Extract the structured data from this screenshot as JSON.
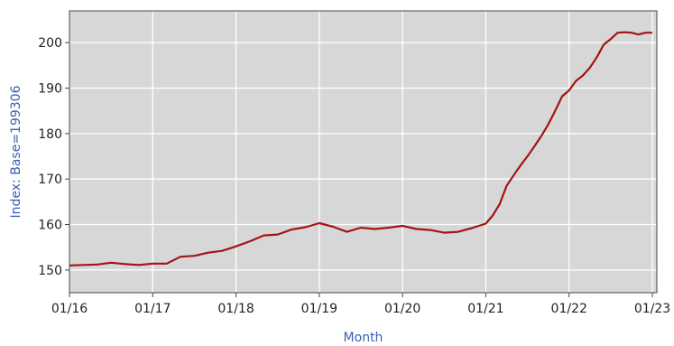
{
  "colors": {
    "plot_background": "#d7d7d7",
    "gridline": "#ffffff",
    "series_line": "#a31414",
    "axis_title": "#3a5fb0",
    "frame": "#444444"
  },
  "chart_data": {
    "type": "line",
    "title": "",
    "xlabel": "Month",
    "ylabel": "Index: Base=199306",
    "ylim": [
      145,
      207
    ],
    "y_ticks": [
      150,
      160,
      170,
      180,
      190,
      200
    ],
    "x_tick_labels": [
      "01/16",
      "01/17",
      "01/18",
      "01/19",
      "01/20",
      "01/21",
      "01/22",
      "01/23"
    ],
    "grid": true,
    "legend": "none",
    "series": [
      {
        "points": [
          [
            "2016-01",
            151.0
          ],
          [
            "2016-03",
            151.1
          ],
          [
            "2016-05",
            151.2
          ],
          [
            "2016-07",
            151.6
          ],
          [
            "2016-09",
            151.3
          ],
          [
            "2016-11",
            151.1
          ],
          [
            "2017-01",
            151.4
          ],
          [
            "2017-03",
            151.4
          ],
          [
            "2017-05",
            152.9
          ],
          [
            "2017-07",
            153.1
          ],
          [
            "2017-09",
            153.8
          ],
          [
            "2017-11",
            154.2
          ],
          [
            "2018-01",
            155.2
          ],
          [
            "2018-03",
            156.3
          ],
          [
            "2018-05",
            157.6
          ],
          [
            "2018-07",
            157.8
          ],
          [
            "2018-09",
            158.9
          ],
          [
            "2018-11",
            159.4
          ],
          [
            "2019-01",
            160.3
          ],
          [
            "2019-03",
            159.5
          ],
          [
            "2019-05",
            158.4
          ],
          [
            "2019-07",
            159.3
          ],
          [
            "2019-09",
            159.0
          ],
          [
            "2019-11",
            159.3
          ],
          [
            "2020-01",
            159.7
          ],
          [
            "2020-03",
            159.0
          ],
          [
            "2020-05",
            158.8
          ],
          [
            "2020-07",
            158.2
          ],
          [
            "2020-09",
            158.4
          ],
          [
            "2020-11",
            159.2
          ],
          [
            "2021-01",
            160.2
          ],
          [
            "2021-02",
            162.0
          ],
          [
            "2021-03",
            164.5
          ],
          [
            "2021-04",
            168.5
          ],
          [
            "2021-05",
            170.8
          ],
          [
            "2021-06",
            173.0
          ],
          [
            "2021-07",
            175.0
          ],
          [
            "2021-08",
            177.2
          ],
          [
            "2021-09",
            179.5
          ],
          [
            "2021-10",
            182.0
          ],
          [
            "2021-11",
            185.0
          ],
          [
            "2021-12",
            188.2
          ],
          [
            "2022-01",
            189.5
          ],
          [
            "2022-02",
            191.6
          ],
          [
            "2022-03",
            192.8
          ],
          [
            "2022-04",
            194.5
          ],
          [
            "2022-05",
            196.8
          ],
          [
            "2022-06",
            199.6
          ],
          [
            "2022-07",
            200.8
          ],
          [
            "2022-08",
            202.2
          ],
          [
            "2022-09",
            202.3
          ],
          [
            "2022-10",
            202.2
          ],
          [
            "2022-11",
            201.8
          ],
          [
            "2022-12",
            202.2
          ],
          [
            "2023-01",
            202.2
          ]
        ]
      }
    ]
  }
}
